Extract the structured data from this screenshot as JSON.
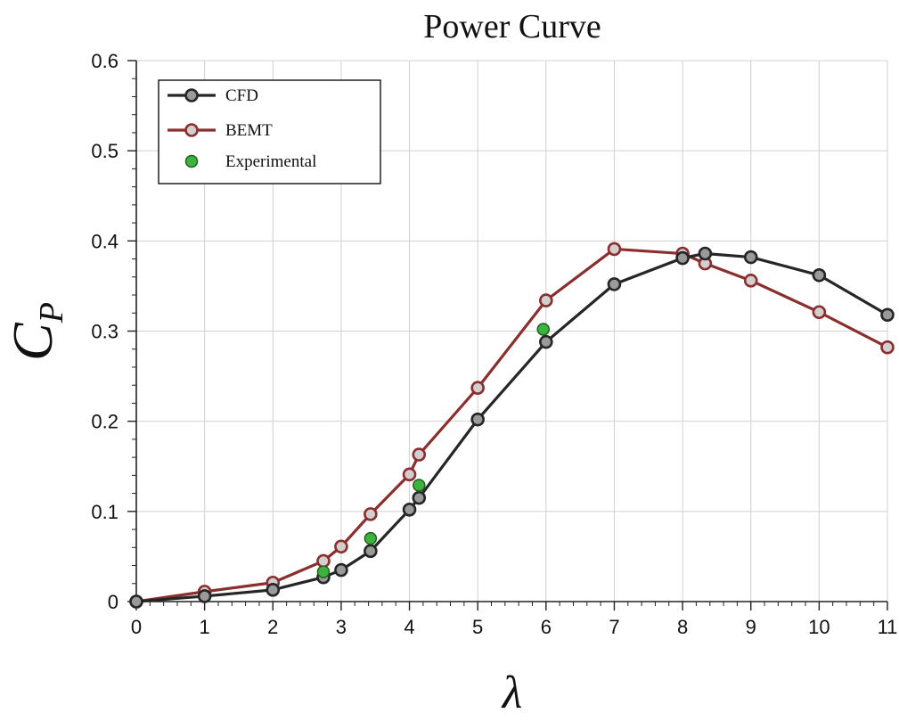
{
  "chart_data": {
    "type": "line",
    "title": "Power Curve",
    "xlabel": "λ",
    "ylabel": "C",
    "ylabel_subscript": "P",
    "xlim": [
      0,
      11
    ],
    "ylim": [
      0,
      0.6
    ],
    "x_ticks": [
      0,
      1,
      2,
      3,
      4,
      5,
      6,
      7,
      8,
      9,
      10,
      11
    ],
    "y_ticks": [
      0,
      0.1,
      0.2,
      0.3,
      0.4,
      0.5,
      0.6
    ],
    "x_tick_labels": [
      "0",
      "1",
      "2",
      "3",
      "4",
      "5",
      "6",
      "7",
      "8",
      "9",
      "10",
      "11"
    ],
    "y_tick_labels": [
      "0",
      "0.1",
      "0.2",
      "0.3",
      "0.4",
      "0.5",
      "0.6"
    ],
    "grid": true,
    "legend_position": "top-left",
    "series": [
      {
        "name": "CFD",
        "style": "line-marker",
        "line_color": "#262626",
        "marker_fill": "#9a9a9a",
        "marker_edge": "#262626",
        "x": [
          0,
          1,
          2,
          2.74,
          3.0,
          3.43,
          4.0,
          4.14,
          5.0,
          6.0,
          7.0,
          8.0,
          8.33,
          9.0,
          10.0,
          11.0
        ],
        "y": [
          0.0,
          0.006,
          0.013,
          0.027,
          0.035,
          0.056,
          0.102,
          0.115,
          0.202,
          0.288,
          0.352,
          0.381,
          0.386,
          0.382,
          0.362,
          0.318
        ]
      },
      {
        "name": "BEMT",
        "style": "line-marker",
        "line_color": "#8b2e2e",
        "marker_fill": "#d4cfcf",
        "marker_edge": "#8b2e2e",
        "x": [
          0,
          1,
          2,
          2.74,
          3.0,
          3.43,
          4.0,
          4.14,
          5.0,
          6.0,
          7.0,
          8.0,
          8.33,
          9.0,
          10.0,
          11.0
        ],
        "y": [
          0.0,
          0.011,
          0.021,
          0.045,
          0.061,
          0.097,
          0.141,
          0.163,
          0.237,
          0.334,
          0.391,
          0.386,
          0.375,
          0.356,
          0.321,
          0.282
        ]
      },
      {
        "name": "Experimental",
        "style": "marker",
        "marker_fill": "#3db33d",
        "marker_edge": "#1f5f1f",
        "x": [
          2.74,
          3.43,
          4.14,
          5.96
        ],
        "y": [
          0.033,
          0.07,
          0.129,
          0.302
        ]
      }
    ]
  }
}
